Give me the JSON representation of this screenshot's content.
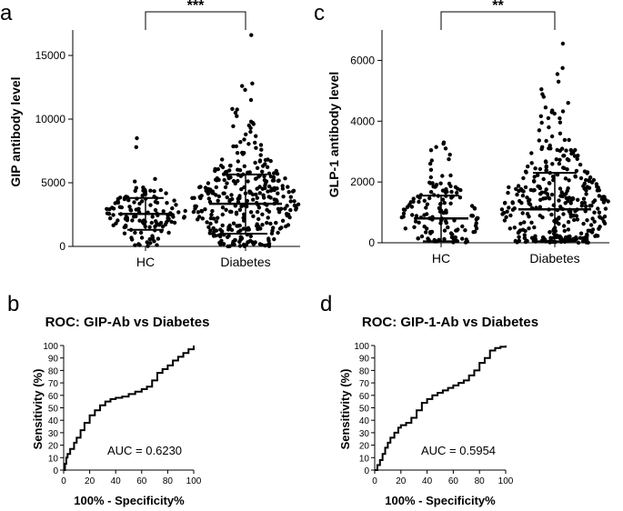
{
  "chart_data": [
    {
      "id": "a",
      "type": "scatter",
      "panel_label": "a",
      "ylabel": "GIP antibody level",
      "xlabel": "",
      "categories": [
        "HC",
        "Diabetes"
      ],
      "ylim": [
        0,
        17000
      ],
      "yticks": [
        0,
        5000,
        10000,
        15000
      ],
      "series": [
        {
          "name": "HC",
          "n": 130,
          "median": 2550,
          "sd_low": 1300,
          "sd_high": 3800,
          "mean": 2550,
          "outliers": [
            8500,
            7800,
            5300,
            5100
          ]
        },
        {
          "name": "Diabetes",
          "n": 320,
          "median": 3350,
          "sd_low": 1000,
          "sd_high": 5650,
          "mean": 3350,
          "outliers": [
            16600,
            12800,
            12600,
            12300,
            11500,
            10800,
            10500,
            9800,
            9700,
            9500,
            9300,
            9000,
            8800,
            8400,
            8200
          ]
        }
      ],
      "significance": "***"
    },
    {
      "id": "c",
      "type": "scatter",
      "panel_label": "c",
      "ylabel": "GLP-1 antibody level",
      "xlabel": "",
      "categories": [
        "HC",
        "Diabetes"
      ],
      "ylim": [
        0,
        7000
      ],
      "yticks": [
        0,
        2000,
        4000,
        6000
      ],
      "series": [
        {
          "name": "HC",
          "n": 130,
          "median": 800,
          "sd_low": 50,
          "sd_high": 1550,
          "mean": 800,
          "outliers": [
            3300,
            3150,
            2900,
            2750,
            2600,
            2400,
            2200
          ]
        },
        {
          "name": "Diabetes",
          "n": 320,
          "median": 1100,
          "sd_low": 50,
          "sd_high": 2300,
          "mean": 1100,
          "outliers": [
            6550,
            5750,
            5550,
            5300,
            5050,
            4800,
            4600,
            4450,
            4350,
            4250,
            4100,
            3950,
            3700,
            3500,
            3350,
            3200,
            3050,
            2950
          ]
        }
      ],
      "significance": "**"
    },
    {
      "id": "b",
      "type": "line",
      "panel_label": "b",
      "title": "ROC: GIP-Ab vs Diabetes",
      "xlabel": "100% - Specificity%",
      "ylabel": "Sensitivity (%)",
      "xlim": [
        0,
        100
      ],
      "ylim": [
        0,
        100
      ],
      "xticks": [
        0,
        20,
        40,
        60,
        80,
        100
      ],
      "yticks": [
        0,
        10,
        20,
        30,
        40,
        50,
        60,
        70,
        80,
        90,
        100
      ],
      "annotation": "AUC = 0.6230",
      "x": [
        0,
        1,
        2,
        3,
        5,
        8,
        10,
        13,
        16,
        20,
        24,
        28,
        32,
        36,
        40,
        45,
        50,
        55,
        60,
        64,
        68,
        72,
        76,
        80,
        84,
        88,
        92,
        96,
        100
      ],
      "y": [
        0,
        5,
        10,
        13,
        17,
        22,
        26,
        32,
        38,
        44,
        48,
        52,
        55,
        57,
        58,
        59,
        61,
        63,
        65,
        67,
        72,
        78,
        81,
        84,
        88,
        91,
        94,
        97,
        100
      ]
    },
    {
      "id": "d",
      "type": "line",
      "panel_label": "d",
      "title": "ROC: GIP-1-Ab vs Diabetes",
      "xlabel": "100% - Specificity%",
      "ylabel": "Sensitivity (%)",
      "xlim": [
        0,
        100
      ],
      "ylim": [
        0,
        100
      ],
      "xticks": [
        0,
        20,
        40,
        60,
        80,
        100
      ],
      "yticks": [
        0,
        10,
        20,
        30,
        40,
        50,
        60,
        70,
        80,
        90,
        100
      ],
      "annotation": "AUC = 0.5954",
      "x": [
        0,
        2,
        4,
        6,
        8,
        10,
        12,
        15,
        18,
        20,
        24,
        28,
        32,
        36,
        40,
        44,
        48,
        52,
        56,
        60,
        64,
        68,
        72,
        76,
        80,
        84,
        88,
        92,
        96,
        100
      ],
      "y": [
        0,
        4,
        8,
        13,
        18,
        22,
        26,
        30,
        34,
        36,
        38,
        42,
        48,
        54,
        57,
        60,
        62,
        64,
        66,
        68,
        70,
        72,
        76,
        80,
        86,
        90,
        96,
        98,
        99,
        100
      ]
    }
  ]
}
